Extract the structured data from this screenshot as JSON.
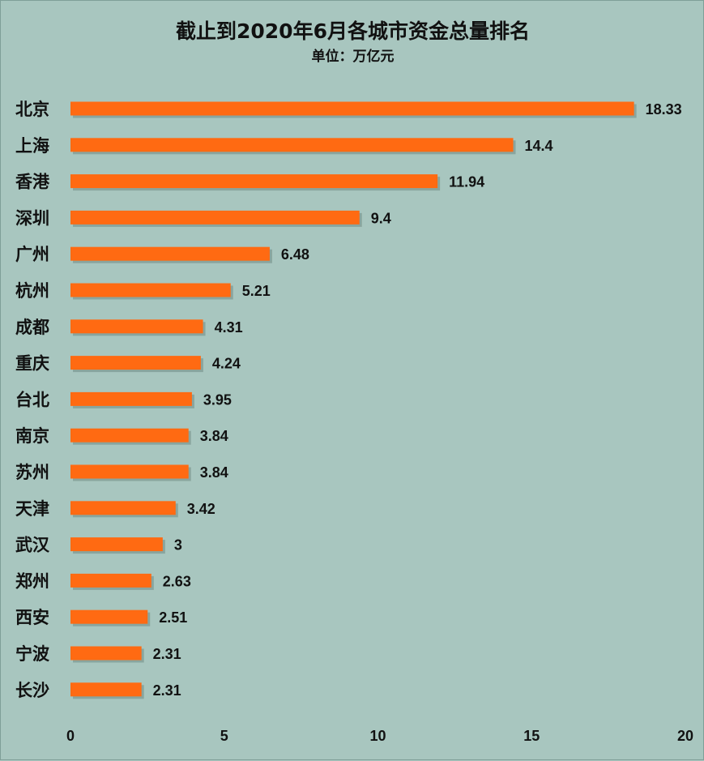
{
  "chart_data": {
    "type": "bar",
    "orientation": "horizontal",
    "title": "截止到2020年6月各城市资金总量排名",
    "subtitle": "单位：万亿元",
    "categories": [
      "北京",
      "上海",
      "香港",
      "深圳",
      "广州",
      "杭州",
      "成都",
      "重庆",
      "台北",
      "南京",
      "苏州",
      "天津",
      "武汉",
      "郑州",
      "西安",
      "宁波",
      "长沙"
    ],
    "values": [
      18.33,
      14.4,
      11.94,
      9.4,
      6.48,
      5.21,
      4.31,
      4.24,
      3.95,
      3.84,
      3.84,
      3.42,
      3,
      2.63,
      2.51,
      2.31,
      2.31
    ],
    "value_labels": [
      "18.33",
      "14.4",
      "11.94",
      "9.4",
      "6.48",
      "5.21",
      "4.31",
      "4.24",
      "3.95",
      "3.84",
      "3.84",
      "3.42",
      "3",
      "2.63",
      "2.51",
      "2.31",
      "2.31"
    ],
    "xlim": [
      0,
      20
    ],
    "xticks": [
      0,
      5,
      10,
      15,
      20
    ],
    "xlabel": "",
    "ylabel": "",
    "grid": false,
    "legend": "none",
    "bar_color": "#ff6a12",
    "background_color": "#a8c6bf"
  }
}
